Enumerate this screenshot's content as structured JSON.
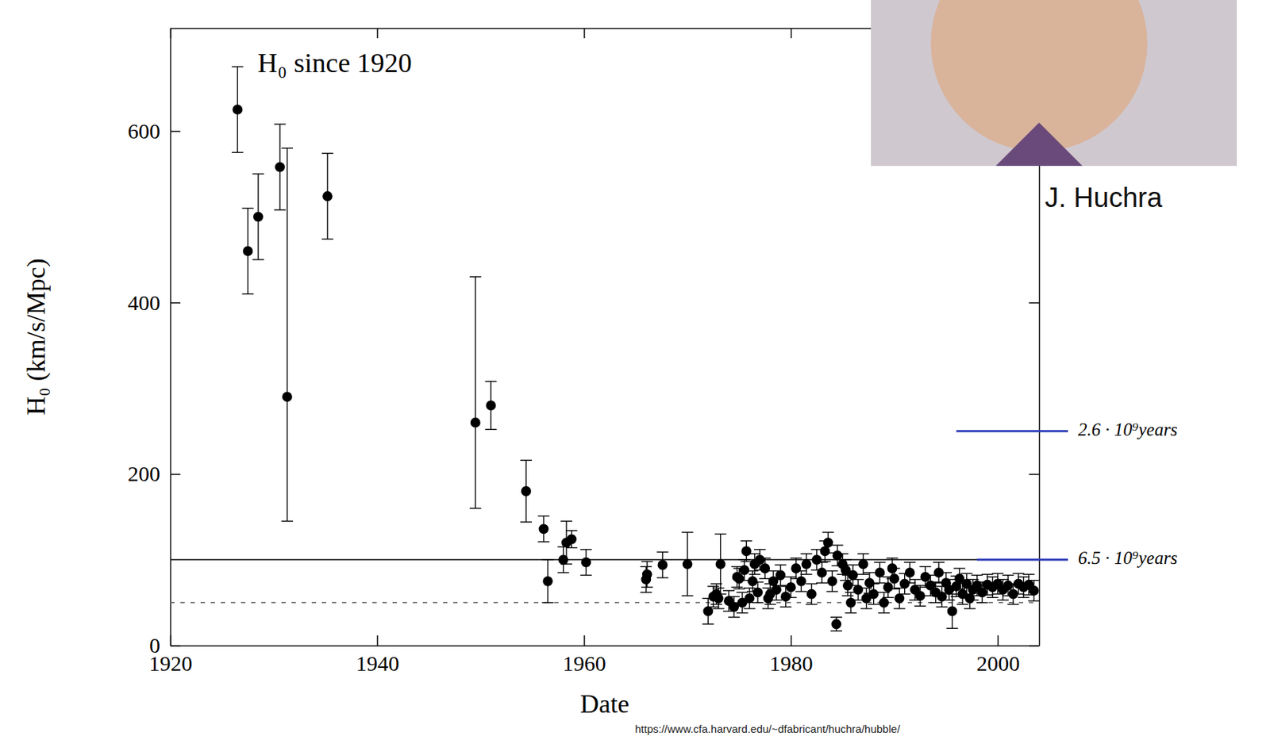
{
  "chart_data": {
    "type": "scatter",
    "title": "H₀ since 1920",
    "x_label": "Date",
    "y_label": "H₀ (km/s/Mpc)",
    "color": "#000000",
    "marker": "circle",
    "xlim": [
      1920,
      2004
    ],
    "ylim": [
      0,
      720
    ],
    "xticks": [
      1920,
      1940,
      1960,
      1980,
      2000
    ],
    "yticks": [
      0,
      200,
      400,
      600
    ],
    "x": [
      1926.5,
      1927.5,
      1928.5,
      1930.6,
      1931.3,
      1935.2,
      1949.5,
      1951.0,
      1954.4,
      1956.1,
      1956.5,
      1958.0,
      1958.3,
      1958.8,
      1960.2,
      1966.0,
      1966.1,
      1967.6,
      1970.0,
      1972.0,
      1972.5,
      1972.8,
      1973.0,
      1973.2,
      1974.0,
      1974.5,
      1974.8,
      1975.0,
      1975.3,
      1975.5,
      1975.7,
      1976.0,
      1976.3,
      1976.5,
      1976.8,
      1977.0,
      1977.5,
      1977.8,
      1978.0,
      1978.3,
      1978.6,
      1979.0,
      1979.5,
      1980.0,
      1980.5,
      1981.0,
      1981.5,
      1982.0,
      1982.5,
      1983.0,
      1983.3,
      1983.6,
      1984.0,
      1984.4,
      1984.5,
      1985.0,
      1985.3,
      1985.5,
      1985.8,
      1986.0,
      1986.5,
      1987.0,
      1987.3,
      1987.6,
      1988.0,
      1988.6,
      1989.0,
      1989.4,
      1989.8,
      1990.0,
      1990.5,
      1991.0,
      1991.5,
      1992.0,
      1992.5,
      1993.0,
      1993.5,
      1994.0,
      1994.3,
      1994.6,
      1995.0,
      1995.3,
      1995.6,
      1996.0,
      1996.3,
      1996.6,
      1997.0,
      1997.3,
      1997.6,
      1998.0,
      1998.5,
      1999.0,
      1999.5,
      2000.0,
      2000.5,
      2001.0,
      2001.5,
      2002.0,
      2002.5,
      2003.0,
      2003.5
    ],
    "values": [
      625,
      460,
      500,
      558,
      290,
      524,
      260,
      280,
      180,
      136,
      75,
      100,
      120,
      124,
      97,
      77,
      83,
      94,
      95,
      40,
      57,
      60,
      55,
      95,
      52,
      45,
      80,
      78,
      50,
      88,
      110,
      55,
      75,
      95,
      62,
      100,
      90,
      55,
      60,
      75,
      65,
      82,
      57,
      68,
      90,
      75,
      95,
      60,
      100,
      85,
      110,
      120,
      75,
      25,
      105,
      95,
      88,
      70,
      50,
      82,
      65,
      95,
      55,
      73,
      60,
      85,
      50,
      68,
      90,
      78,
      55,
      72,
      85,
      65,
      58,
      80,
      70,
      62,
      85,
      57,
      73,
      65,
      40,
      69,
      78,
      60,
      72,
      55,
      65,
      70,
      62,
      71,
      68,
      72,
      65,
      70,
      60,
      72,
      68,
      71,
      64
    ],
    "error_low": [
      50,
      50,
      50,
      50,
      145,
      50,
      100,
      28,
      36,
      15,
      25,
      15,
      25,
      10,
      15,
      15,
      15,
      15,
      37,
      15,
      12,
      12,
      12,
      35,
      12,
      12,
      12,
      12,
      12,
      12,
      12,
      12,
      12,
      12,
      12,
      12,
      12,
      12,
      12,
      12,
      12,
      12,
      12,
      12,
      12,
      12,
      12,
      12,
      12,
      12,
      12,
      12,
      12,
      8,
      12,
      12,
      12,
      12,
      12,
      12,
      12,
      12,
      12,
      12,
      12,
      12,
      12,
      12,
      12,
      12,
      12,
      12,
      12,
      12,
      12,
      12,
      12,
      12,
      12,
      12,
      12,
      12,
      20,
      12,
      12,
      12,
      12,
      12,
      12,
      12,
      12,
      12,
      12,
      12,
      12,
      12,
      12,
      12,
      12,
      12,
      12
    ],
    "error_high": [
      50,
      50,
      50,
      50,
      290,
      50,
      170,
      28,
      36,
      15,
      25,
      15,
      25,
      10,
      15,
      15,
      15,
      15,
      37,
      15,
      12,
      12,
      12,
      35,
      12,
      12,
      12,
      12,
      12,
      12,
      12,
      12,
      12,
      12,
      12,
      12,
      12,
      12,
      12,
      12,
      12,
      12,
      12,
      12,
      12,
      12,
      12,
      12,
      12,
      12,
      12,
      12,
      12,
      8,
      12,
      12,
      12,
      12,
      12,
      12,
      12,
      12,
      12,
      12,
      12,
      12,
      12,
      12,
      12,
      12,
      12,
      12,
      12,
      12,
      12,
      12,
      12,
      12,
      12,
      12,
      12,
      12,
      20,
      12,
      12,
      12,
      12,
      12,
      12,
      12,
      12,
      12,
      12,
      12,
      12,
      12,
      12,
      12,
      12,
      12,
      12
    ],
    "reference_lines": [
      {
        "value": 100,
        "line_style": "solid"
      },
      {
        "value": 50,
        "line_style": "dashed"
      }
    ],
    "annotations": [
      {
        "text": "2.6 · 10⁹years",
        "x": 1996,
        "y": 250,
        "color": "#2e3cb8"
      },
      {
        "text": "6.5 · 10⁹years",
        "x": 1998,
        "y": 100,
        "color": "#2e3cb8"
      }
    ],
    "photo_caption": "J. Huchra",
    "source_url": "https://www.cfa.harvard.edu/~dfabricant/huchra/hubble/"
  }
}
